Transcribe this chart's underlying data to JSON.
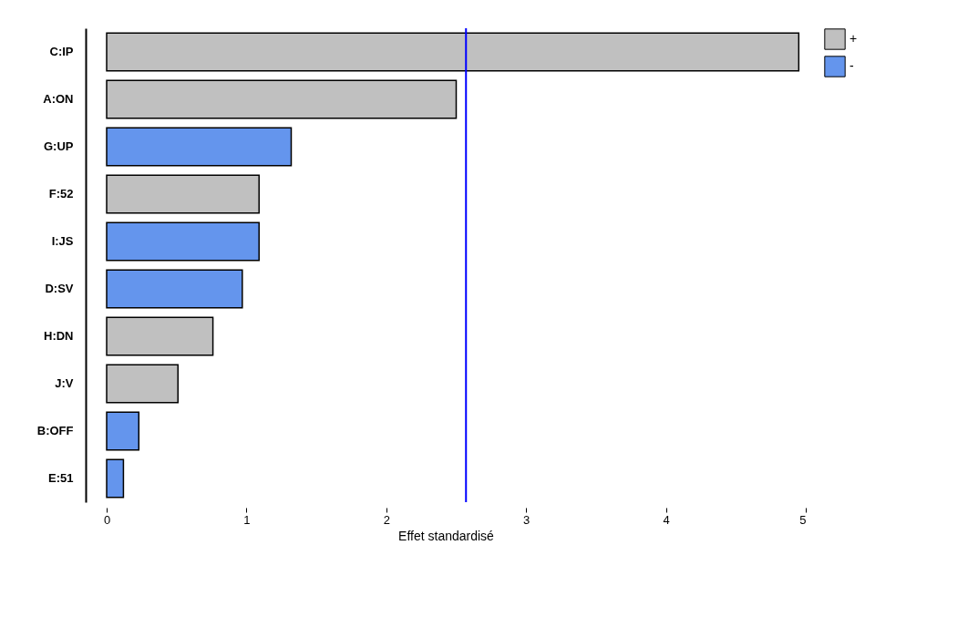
{
  "chart_data": {
    "type": "bar",
    "orientation": "horizontal",
    "xlabel": "Effet standardisé",
    "categories": [
      "C:IP",
      "A:ON",
      "G:UP",
      "F:52",
      "I:JS",
      "D:SV",
      "H:DN",
      "J:V",
      "B:OFF",
      "E:51"
    ],
    "series": [
      {
        "name": "+",
        "color": "#c0c0c0",
        "values": [
          4.95,
          2.5,
          null,
          1.09,
          null,
          null,
          0.76,
          0.51,
          null,
          null
        ]
      },
      {
        "name": "-",
        "color": "#6495ed",
        "values": [
          null,
          null,
          1.32,
          null,
          1.09,
          0.97,
          null,
          null,
          0.23,
          0.12
        ]
      }
    ],
    "xlim": [
      -0.15,
      5
    ],
    "xticks": [
      0,
      1,
      2,
      3,
      4,
      5
    ],
    "ref_lines": [
      {
        "axis": "x",
        "value": 2.57,
        "color": "#0000ff"
      }
    ],
    "legend": "top right",
    "grid": false
  }
}
